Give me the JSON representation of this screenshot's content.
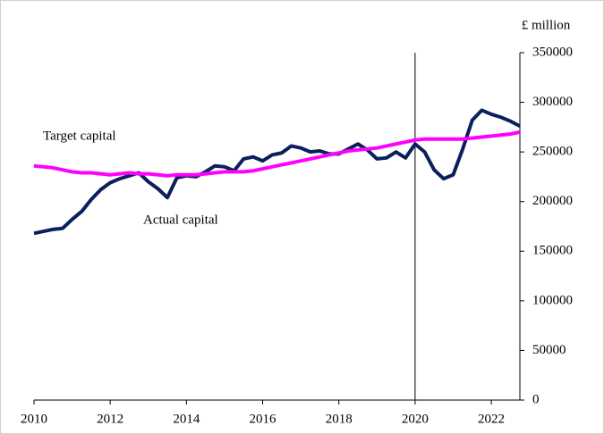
{
  "chart_data": {
    "type": "line",
    "y_label": "£ million",
    "x": [
      2010,
      2010.25,
      2010.5,
      2010.75,
      2011,
      2011.25,
      2011.5,
      2011.75,
      2012,
      2012.25,
      2012.5,
      2012.75,
      2013,
      2013.25,
      2013.5,
      2013.75,
      2014,
      2014.25,
      2014.5,
      2014.75,
      2015,
      2015.25,
      2015.5,
      2015.75,
      2016,
      2016.25,
      2016.5,
      2016.75,
      2017,
      2017.25,
      2017.5,
      2017.75,
      2018,
      2018.25,
      2018.5,
      2018.75,
      2019,
      2019.25,
      2019.5,
      2019.75,
      2020,
      2020.25,
      2020.5,
      2020.75,
      2021,
      2021.25,
      2021.5,
      2021.75,
      2022,
      2022.25,
      2022.5,
      2022.75
    ],
    "series": [
      {
        "name": "Actual capital",
        "color": "#0b1f5c",
        "values": [
          168000,
          170000,
          172000,
          173000,
          182000,
          190000,
          202000,
          212000,
          219000,
          223000,
          226000,
          229000,
          220000,
          213000,
          204000,
          224000,
          226000,
          225000,
          230000,
          236000,
          235000,
          231000,
          243000,
          245000,
          241000,
          247000,
          249000,
          256000,
          254000,
          250000,
          251000,
          248000,
          248000,
          253000,
          258000,
          252000,
          243000,
          244000,
          250000,
          244000,
          258000,
          250000,
          232000,
          223000,
          227000,
          253000,
          282000,
          292000,
          288000,
          285000,
          281000,
          276000
        ]
      },
      {
        "name": "Target capital",
        "color": "#ff00ff",
        "values": [
          236000,
          235000,
          234000,
          232000,
          230000,
          229000,
          229000,
          228000,
          227000,
          228000,
          229000,
          228000,
          228000,
          227000,
          226000,
          227000,
          227000,
          227000,
          228000,
          229000,
          230000,
          230000,
          230000,
          231000,
          233000,
          235000,
          237000,
          239000,
          241000,
          243000,
          245000,
          247000,
          249000,
          251000,
          252000,
          253000,
          254000,
          256000,
          258000,
          260000,
          262000,
          263000,
          263000,
          263000,
          263000,
          263000,
          264000,
          265000,
          266000,
          267000,
          268000,
          270000
        ]
      }
    ],
    "xlim": [
      2010,
      2022.75
    ],
    "xticks": [
      2010,
      2012,
      2014,
      2016,
      2018,
      2020,
      2022
    ],
    "ylim": [
      0,
      350000
    ],
    "yticks": [
      0,
      50000,
      100000,
      150000,
      200000,
      250000,
      300000,
      350000
    ],
    "vline": 2020,
    "y_axis_side": "right",
    "grid": false
  }
}
